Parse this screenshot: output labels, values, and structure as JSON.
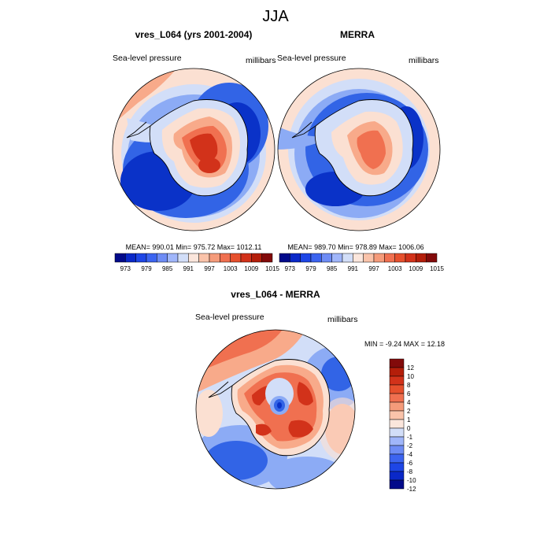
{
  "figure_title": "JJA",
  "panels": [
    {
      "title": "vres_L064 (yrs 2001-2004)",
      "left_label": "Sea-level pressure",
      "right_label": "millibars",
      "stats": "MEAN= 990.01  Min= 975.72  Max= 1012.11"
    },
    {
      "title": "MERRA",
      "left_label": "Sea-level pressure",
      "right_label": "millibars",
      "stats": "MEAN= 989.70  Min= 978.89  Max= 1006.06"
    },
    {
      "title": "vres_L064 - MERRA",
      "left_label": "Sea-level pressure",
      "right_label": "millibars",
      "stats": "MIN =  -9.24 MAX =  12.18"
    }
  ],
  "horizontal_colorbar": {
    "colors": [
      "#020a8a",
      "#0a28c8",
      "#1e46e6",
      "#3c64f0",
      "#6e8cf5",
      "#a0b6fa",
      "#d2def8",
      "#fbe6dc",
      "#fac3aa",
      "#f59b7a",
      "#f07050",
      "#e6502d",
      "#d2321a",
      "#b41e0a",
      "#820a0a"
    ],
    "labels": [
      "973",
      "979",
      "985",
      "991",
      "997",
      "1003",
      "1009",
      "1015"
    ]
  },
  "vertical_colorbar": {
    "colors": [
      "#820a0a",
      "#b41e0a",
      "#d2321a",
      "#e6502d",
      "#f07050",
      "#f59b7a",
      "#fac3aa",
      "#fbe6dc",
      "#d2def8",
      "#a0b6fa",
      "#6e8cf5",
      "#3c64f0",
      "#1e46e6",
      "#0a28c8",
      "#020a8a"
    ],
    "labels": [
      "12",
      "10",
      "8",
      "6",
      "4",
      "2",
      "1",
      "0",
      "-1",
      "-2",
      "-4",
      "-6",
      "-8",
      "-10",
      "-12"
    ]
  },
  "map_colors": {
    "deep_blue": "#0a32c8",
    "mid_blue": "#3264e6",
    "light_blue": "#8cabf5",
    "pale_blue": "#d2def8",
    "pale_orange": "#fbe0d2",
    "light_orange": "#f8aa8a",
    "orange": "#f07050",
    "red": "#d2321a",
    "coast": "#000000"
  }
}
